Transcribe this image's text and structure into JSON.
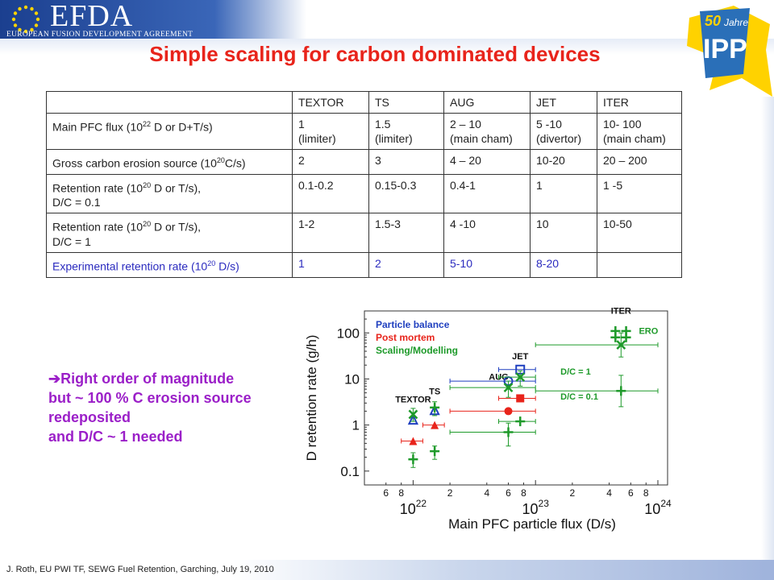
{
  "header": {
    "logo_text": "EFDA",
    "logo_subtitle": "EUROPEAN FUSION DEVELOPMENT AGREEMENT",
    "ipp_logo_line1": "50",
    "ipp_logo_line2": "Jahre",
    "ipp_logo_line3": "IPP"
  },
  "title": "Simple scaling for carbon dominated devices",
  "table": {
    "headers": [
      "",
      "TEXTOR",
      "TS",
      "AUG",
      "JET",
      "ITER"
    ],
    "rows": [
      {
        "label_pre": "Main PFC flux (10",
        "label_sup": "22",
        "label_post": " D or D+T/s)",
        "label_line2": "",
        "cells": [
          [
            "1",
            "(limiter)"
          ],
          [
            "1.5",
            "(limiter)"
          ],
          [
            "2 – 10",
            "(main cham)"
          ],
          [
            "5 -10",
            "(divertor)"
          ],
          [
            "10- 100",
            "(main cham)"
          ]
        ]
      },
      {
        "label_pre": "Gross carbon erosion source (10",
        "label_sup": "20",
        "label_post": "C/s)",
        "label_line2": "",
        "cells": [
          [
            "2"
          ],
          [
            "3"
          ],
          [
            "4  – 20"
          ],
          [
            "10-20"
          ],
          [
            "20 – 200"
          ]
        ]
      },
      {
        "label_pre": "Retention rate (10",
        "label_sup": "20",
        "label_post": " D or T/s),",
        "label_line2": "D/C = 0.1",
        "cells": [
          [
            "0.1-0.2"
          ],
          [
            "0.15-0.3"
          ],
          [
            "0.4-1"
          ],
          [
            "1"
          ],
          [
            "1 -5"
          ]
        ]
      },
      {
        "label_pre": "Retention rate (10",
        "label_sup": "20",
        "label_post": " D or T/s),",
        "label_line2": "D/C = 1",
        "cells": [
          [
            "1-2"
          ],
          [
            "1.5-3"
          ],
          [
            "4 -10"
          ],
          [
            "10"
          ],
          [
            "10-50"
          ]
        ]
      },
      {
        "label_pre": "Experimental retention rate (10",
        "label_sup": "20",
        "label_post": " D/s)",
        "label_line2": "",
        "cells": [
          [
            "1"
          ],
          [
            "2"
          ],
          [
            "5-10"
          ],
          [
            "8-20"
          ],
          [
            ""
          ]
        ]
      }
    ]
  },
  "bullet": {
    "arrow": "➔",
    "lines": [
      "Right order of magnitude",
      "but ~ 100 % C erosion source",
      "redeposited",
      "and D/C ~ 1 needed"
    ]
  },
  "chart_data": {
    "type": "scatter",
    "xlabel": "Main PFC particle flux (D/s)",
    "ylabel": "D retention rate (g/h)",
    "xscale": "log",
    "yscale": "log",
    "xlim": [
      4e+21,
      1.2e+24
    ],
    "ylim": [
      0.05,
      300
    ],
    "x_tick_major": [
      {
        "v": 1e+22,
        "base": "10",
        "exp": "22"
      },
      {
        "v": 1e+23,
        "base": "10",
        "exp": "23"
      },
      {
        "v": 1e+24,
        "base": "10",
        "exp": "24"
      }
    ],
    "x_tick_minor": [
      {
        "v": 6e+21,
        "t": "6"
      },
      {
        "v": 8e+21,
        "t": "8"
      },
      {
        "v": 2e+22,
        "t": "2"
      },
      {
        "v": 4e+22,
        "t": "4"
      },
      {
        "v": 6e+22,
        "t": "6"
      },
      {
        "v": 8e+22,
        "t": "8"
      },
      {
        "v": 2e+23,
        "t": "2"
      },
      {
        "v": 4e+23,
        "t": "4"
      },
      {
        "v": 6e+23,
        "t": "6"
      },
      {
        "v": 8e+23,
        "t": "8"
      }
    ],
    "y_ticks": [
      {
        "v": 100,
        "t": "100"
      },
      {
        "v": 10,
        "t": "10"
      },
      {
        "v": 1,
        "t": "1"
      },
      {
        "v": 0.1,
        "t": "0.1"
      }
    ],
    "legend": [
      "Particle balance",
      "Post mortem",
      "Scaling/Modelling"
    ],
    "legend_colors": [
      "#1f3fbf",
      "#e8241b",
      "#1e9a2a"
    ],
    "device_labels": [
      {
        "text": "TEXTOR",
        "x": 1e+22,
        "y": 3.1
      },
      {
        "text": "TS",
        "x": 1.5e+22,
        "y": 4.6
      },
      {
        "text": "AUG",
        "x": 5e+22,
        "y": 9.5
      },
      {
        "text": "JET",
        "x": 7.5e+22,
        "y": 27
      },
      {
        "text": "ITER",
        "x": 5e+23,
        "y": 260
      },
      {
        "text": "ERO",
        "x": 7e+23,
        "y": 95
      }
    ],
    "annotations": [
      {
        "text": "D/C = 1",
        "x": 1.6e+23,
        "y": 12.5
      },
      {
        "text": "D/C = 0.1",
        "x": 1.6e+23,
        "y": 3.6
      }
    ],
    "series": [
      {
        "name": "Particle balance",
        "color": "#1f3fbf",
        "points": [
          {
            "x": 1e+22,
            "y": 1.3,
            "m": "tri-open"
          },
          {
            "x": 1.5e+22,
            "y": 2.1,
            "m": "tri-open"
          },
          {
            "x": 6e+22,
            "y": 9,
            "m": "circle-open",
            "xerr": [
              2e+22,
              1e+23
            ]
          },
          {
            "x": 7.5e+22,
            "y": 16,
            "m": "square-open",
            "xerr": [
              5e+22,
              1e+23
            ]
          }
        ]
      },
      {
        "name": "Post mortem",
        "color": "#e8241b",
        "points": [
          {
            "x": 1e+22,
            "y": 0.45,
            "m": "tri",
            "xerr": [
              8e+21,
              1.2e+22
            ]
          },
          {
            "x": 1.5e+22,
            "y": 1.0,
            "m": "tri",
            "xerr": [
              1.2e+22,
              1.8e+22
            ]
          },
          {
            "x": 6e+22,
            "y": 2.0,
            "m": "circle",
            "xerr": [
              2e+22,
              1e+23
            ]
          },
          {
            "x": 7.5e+22,
            "y": 3.8,
            "m": "square",
            "xerr": [
              5e+22,
              1e+23
            ]
          }
        ]
      },
      {
        "name": "Scaling/Modelling",
        "color": "#1e9a2a",
        "points": [
          {
            "x": 1e+22,
            "y": 1.7,
            "m": "x",
            "yerr": [
              1.2,
              2.3
            ]
          },
          {
            "x": 1e+22,
            "y": 0.18,
            "m": "plus",
            "yerr": [
              0.12,
              0.25
            ]
          },
          {
            "x": 1.5e+22,
            "y": 2.4,
            "m": "plus",
            "yerr": [
              1.6,
              3.2
            ]
          },
          {
            "x": 1.5e+22,
            "y": 0.27,
            "m": "plus",
            "yerr": [
              0.18,
              0.35
            ]
          },
          {
            "x": 6e+22,
            "y": 6.5,
            "m": "x",
            "xerr": [
              2e+22,
              1e+23
            ],
            "yerr": [
              4,
              9
            ]
          },
          {
            "x": 6e+22,
            "y": 0.7,
            "m": "plus",
            "xerr": [
              2e+22,
              1e+23
            ],
            "yerr": [
              0.35,
              1.1
            ]
          },
          {
            "x": 7.5e+22,
            "y": 11,
            "m": "x",
            "xerr": [
              5e+22,
              1e+23
            ],
            "yerr": [
              7,
              15
            ]
          },
          {
            "x": 7.5e+22,
            "y": 1.2,
            "m": "plus",
            "xerr": [
              5e+22,
              1e+23
            ]
          },
          {
            "x": 5e+23,
            "y": 55,
            "m": "x",
            "xerr": [
              1e+23,
              1e+24
            ],
            "yerr": [
              30,
              100
            ]
          },
          {
            "x": 5e+23,
            "y": 5.5,
            "m": "plus",
            "xerr": [
              1e+23,
              1e+24
            ],
            "yerr": [
              2.5,
              12
            ]
          },
          {
            "x": 4.5e+23,
            "y": 110,
            "m": "plus"
          },
          {
            "x": 5.5e+23,
            "y": 110,
            "m": "plus"
          },
          {
            "x": 4.5e+23,
            "y": 80,
            "m": "plus"
          },
          {
            "x": 5.5e+23,
            "y": 80,
            "m": "plus"
          }
        ]
      }
    ]
  },
  "footer": "J. Roth, EU PWI TF, SEWG Fuel Retention, Garching, July 19, 2010"
}
